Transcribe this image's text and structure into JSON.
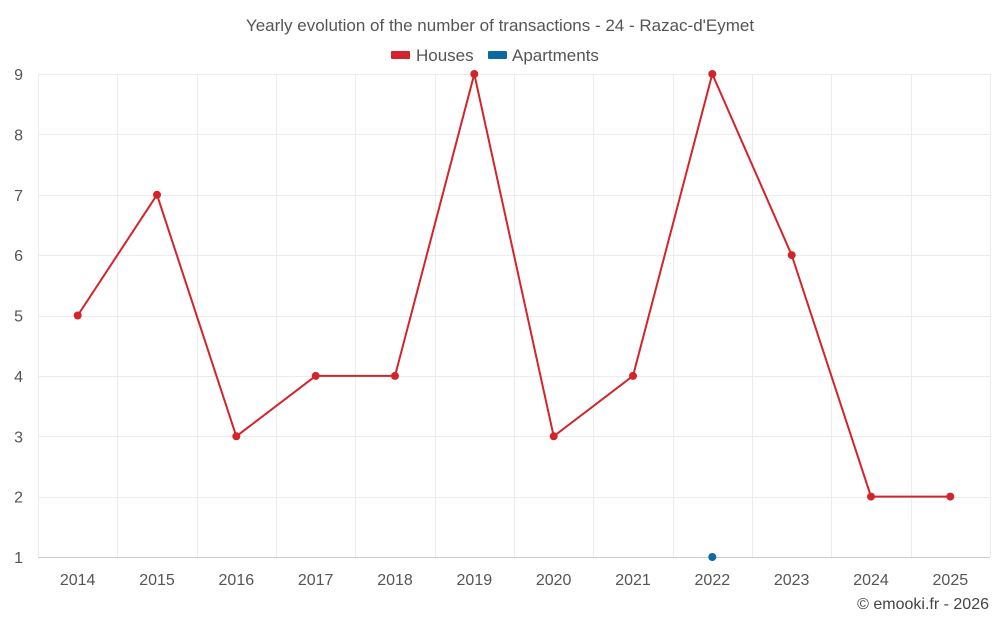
{
  "chart_data": {
    "type": "line",
    "title": "Yearly evolution of the number of transactions - 24 - Razac-d'Eymet",
    "categories": [
      "2014",
      "2015",
      "2016",
      "2017",
      "2018",
      "2019",
      "2020",
      "2021",
      "2022",
      "2023",
      "2024",
      "2025"
    ],
    "series": [
      {
        "name": "Houses",
        "color": "#d3242b",
        "values": [
          5,
          7,
          3,
          4,
          4,
          9,
          3,
          4,
          9,
          6,
          2,
          2
        ]
      },
      {
        "name": "Apartments",
        "color": "#0a6aa1",
        "values": [
          null,
          null,
          null,
          null,
          null,
          null,
          null,
          null,
          1,
          null,
          null,
          null
        ]
      }
    ],
    "yticks": [
      1,
      2,
      3,
      4,
      5,
      6,
      7,
      8,
      9
    ],
    "ylim": [
      1,
      9
    ],
    "grid": true,
    "legend_position": "top-center"
  },
  "credit": "© emooki.fr - 2026"
}
